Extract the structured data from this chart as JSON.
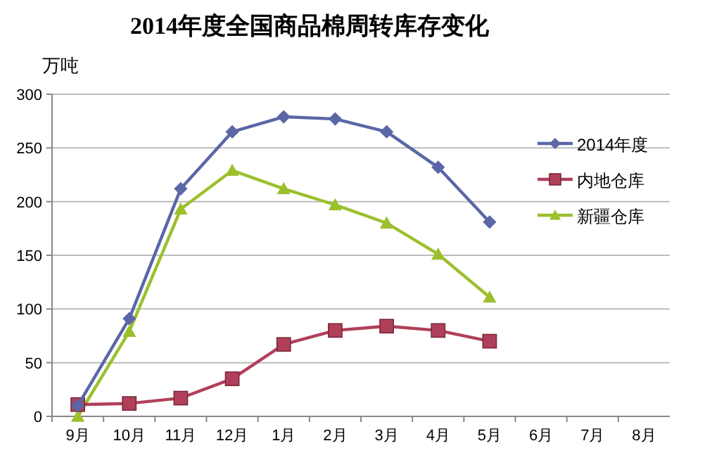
{
  "chart_data": {
    "type": "line",
    "title": "2014年度全国商品棉周转库存变化",
    "ylabel": "万吨",
    "categories": [
      "9月",
      "10月",
      "11月",
      "12月",
      "1月",
      "2月",
      "3月",
      "4月",
      "5月",
      "6月",
      "7月",
      "8月"
    ],
    "series": [
      {
        "name": "2014年度",
        "color": "#5a66a6",
        "marker": "diamond",
        "values": [
          10,
          91,
          212,
          265,
          279,
          277,
          265,
          232,
          181,
          null,
          null,
          null
        ]
      },
      {
        "name": "内地仓库",
        "color": "#b0405a",
        "marker": "square",
        "values": [
          11,
          12,
          17,
          35,
          67,
          80,
          84,
          80,
          70,
          null,
          null,
          null
        ]
      },
      {
        "name": "新疆仓库",
        "color": "#9bc02c",
        "marker": "triangle",
        "values": [
          0,
          79,
          193,
          229,
          212,
          197,
          180,
          151,
          111,
          null,
          null,
          null
        ]
      }
    ],
    "ylim": [
      0,
      300
    ],
    "yticks": [
      0,
      50,
      100,
      150,
      200,
      250,
      300
    ],
    "grid": "y",
    "legend": "right"
  }
}
